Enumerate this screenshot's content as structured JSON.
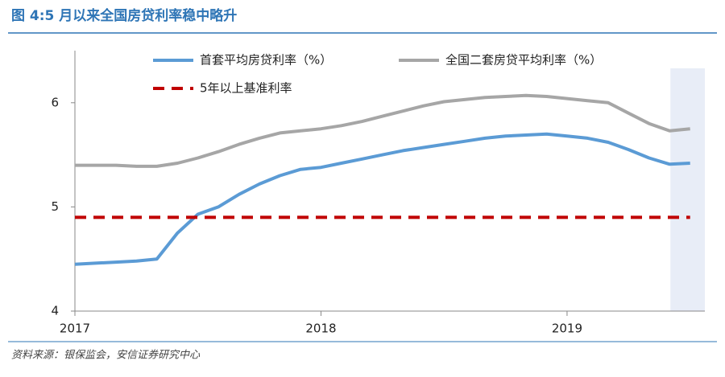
{
  "chart_data": {
    "type": "line",
    "title": "图 4:5 月以来全国房贷利率稳中略升",
    "source": "资料来源：银保监会，安信证券研究中心",
    "x": [
      2017,
      2017.083,
      2017.167,
      2017.25,
      2017.333,
      2017.417,
      2017.5,
      2017.583,
      2017.667,
      2017.75,
      2017.833,
      2017.917,
      2018,
      2018.083,
      2018.167,
      2018.25,
      2018.333,
      2018.417,
      2018.5,
      2018.583,
      2018.667,
      2018.75,
      2018.833,
      2018.917,
      2019,
      2019.083,
      2019.167,
      2019.25,
      2019.333,
      2019.417,
      2019.5
    ],
    "series": [
      {
        "name": "首套平均房贷利率（%）",
        "color": "#5b9bd5",
        "style": "solid",
        "values": [
          4.45,
          4.46,
          4.47,
          4.48,
          4.5,
          4.75,
          4.93,
          5.0,
          5.12,
          5.22,
          5.3,
          5.36,
          5.38,
          5.42,
          5.46,
          5.5,
          5.54,
          5.57,
          5.6,
          5.63,
          5.66,
          5.68,
          5.69,
          5.7,
          5.68,
          5.66,
          5.62,
          5.55,
          5.47,
          5.41,
          5.42
        ]
      },
      {
        "name": "全国二套房贷平均利率（%）",
        "color": "#a6a6a6",
        "style": "solid",
        "values": [
          5.4,
          5.4,
          5.4,
          5.39,
          5.39,
          5.42,
          5.47,
          5.53,
          5.6,
          5.66,
          5.71,
          5.73,
          5.75,
          5.78,
          5.82,
          5.87,
          5.92,
          5.97,
          6.01,
          6.03,
          6.05,
          6.06,
          6.07,
          6.06,
          6.04,
          6.02,
          6.0,
          5.9,
          5.8,
          5.73,
          5.75
        ]
      },
      {
        "name": "5年以上基准利率",
        "color": "#c00000",
        "style": "dashed",
        "values": [
          4.9,
          4.9,
          4.9,
          4.9,
          4.9,
          4.9,
          4.9,
          4.9,
          4.9,
          4.9,
          4.9,
          4.9,
          4.9,
          4.9,
          4.9,
          4.9,
          4.9,
          4.9,
          4.9,
          4.9,
          4.9,
          4.9,
          4.9,
          4.9,
          4.9,
          4.9,
          4.9,
          4.9,
          4.9,
          4.9,
          4.9
        ]
      }
    ],
    "highlight_x": [
      2019.42,
      2019.56
    ],
    "xlim": [
      2017,
      2019.56
    ],
    "xticks": [
      2017,
      2018,
      2019
    ],
    "ylim": [
      4,
      6.5
    ],
    "yticks": [
      4,
      5,
      6
    ]
  }
}
